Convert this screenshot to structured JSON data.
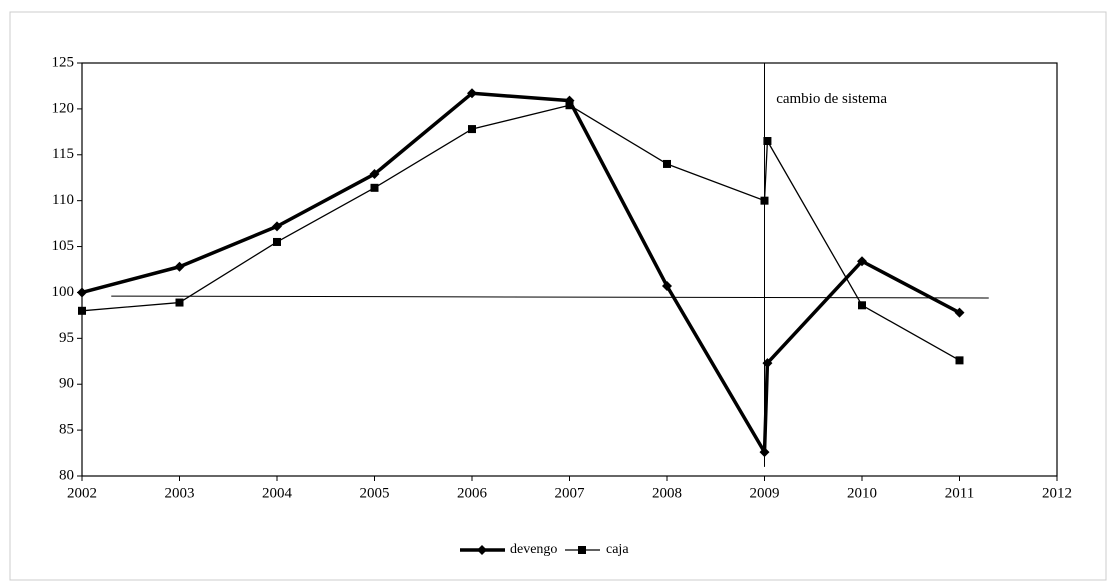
{
  "chart_data": {
    "type": "line",
    "x": [
      2002,
      2003,
      2004,
      2005,
      2006,
      2007,
      2008,
      2009,
      2009.03,
      2010,
      2011
    ],
    "series": [
      {
        "name": "devengo",
        "color": "#000000",
        "marker": "diamond",
        "width": 3.5,
        "values": [
          100,
          102.8,
          107.2,
          112.9,
          121.7,
          120.9,
          100.7,
          82.6,
          92.3,
          103.4,
          97.8
        ]
      },
      {
        "name": "caja",
        "color": "#000000",
        "marker": "square",
        "width": 1.3,
        "values": [
          98,
          98.9,
          105.5,
          111.4,
          117.8,
          120.4,
          114.0,
          110.0,
          116.5,
          98.6,
          92.6
        ]
      }
    ],
    "xlim": [
      2002,
      2012
    ],
    "xticks": [
      2002,
      2003,
      2004,
      2005,
      2006,
      2007,
      2008,
      2009,
      2010,
      2011,
      2012
    ],
    "ylim": [
      80,
      125
    ],
    "yticks": [
      80,
      85,
      90,
      95,
      100,
      105,
      110,
      115,
      120,
      125
    ],
    "reference_line": {
      "x": [
        2002.3,
        2011.3
      ],
      "y": [
        99.6,
        99.4
      ]
    },
    "vline": {
      "x": 2009,
      "y": [
        81,
        125
      ]
    },
    "annotation": {
      "text": "cambio de sistema",
      "x": 2009.12,
      "y": 121
    },
    "legend": "bottom"
  }
}
